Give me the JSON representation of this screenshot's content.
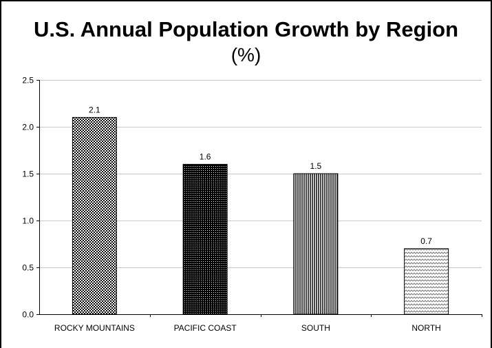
{
  "chart_data": {
    "type": "bar",
    "title": "U.S. Annual Population Growth by Region",
    "subtitle": "(%)",
    "xlabel": "",
    "ylabel": "",
    "categories": [
      "ROCKY MOUNTAINS",
      "PACIFIC COAST",
      "SOUTH",
      "NORTH"
    ],
    "values": [
      2.1,
      1.6,
      1.5,
      0.7
    ],
    "data_labels": [
      "2.1",
      "1.6",
      "1.5",
      "0.7"
    ],
    "ylim": [
      0,
      2.5
    ],
    "yticks": [
      0.0,
      0.5,
      1.0,
      1.5,
      2.0,
      2.5
    ],
    "ytick_labels": [
      "0.0",
      "0.5",
      "1.0",
      "1.5",
      "2.0",
      "2.5"
    ],
    "grid": "horizontal",
    "legend": "none",
    "bar_patterns": [
      "checker",
      "dots",
      "vertical-stripes",
      "zigzag"
    ]
  }
}
